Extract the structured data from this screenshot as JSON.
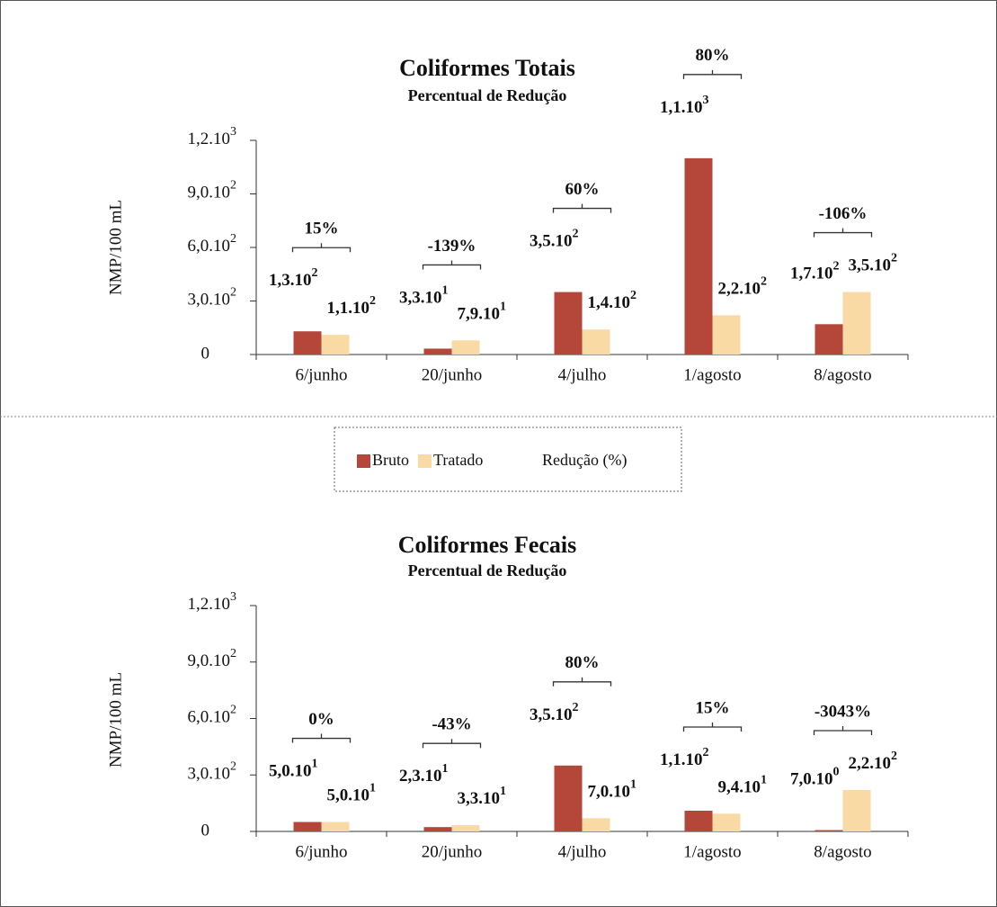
{
  "chart_data": [
    {
      "type": "bar",
      "title": "Coliformes Totais",
      "subtitle": "Percentual de Redução",
      "ylabel": "NMP/100 mL",
      "categories": [
        "6/junho",
        "20/junho",
        "4/julho",
        "1/agosto",
        "8/agosto"
      ],
      "series": [
        {
          "name": "Bruto",
          "color": "#b5473a",
          "values": [
            130,
            33,
            350,
            1100,
            170
          ],
          "value_labels": [
            {
              "text": "1,3.10",
              "exp": "2"
            },
            {
              "text": "3,3.10",
              "exp": "1"
            },
            {
              "text": "3,5.10",
              "exp": "2"
            },
            {
              "text": "1,1.10",
              "exp": "3"
            },
            {
              "text": "1,7.10",
              "exp": "2"
            }
          ]
        },
        {
          "name": "Tratado",
          "color": "#f9d9a4",
          "values": [
            110,
            79,
            140,
            220,
            350
          ],
          "value_labels": [
            {
              "text": "1,1.10",
              "exp": "2"
            },
            {
              "text": "7,9.10",
              "exp": "1"
            },
            {
              "text": "1,4.10",
              "exp": "2"
            },
            {
              "text": "2,2.10",
              "exp": "2"
            },
            {
              "text": "3,5.10",
              "exp": "2"
            }
          ]
        }
      ],
      "reductions": [
        "15%",
        "-139%",
        "60%",
        "80%",
        "-106%"
      ],
      "legend_extra": "Redução (%)",
      "ylim": [
        0,
        1200
      ],
      "yticks": [
        0,
        {
          "value": 300,
          "label": "3,0.10",
          "exp": "2"
        },
        {
          "value": 600,
          "label": "6,0.10",
          "exp": "2"
        },
        {
          "value": 900,
          "label": "9,0.10",
          "exp": "2"
        },
        {
          "value": 1200,
          "label": "1,2.10",
          "exp": "3"
        }
      ]
    },
    {
      "type": "bar",
      "title": "Coliformes Fecais",
      "subtitle": "Percentual de Redução",
      "ylabel": "NMP/100 mL",
      "categories": [
        "6/junho",
        "20/junho",
        "4/julho",
        "1/agosto",
        "8/agosto"
      ],
      "series": [
        {
          "color": "#b5473a",
          "values": [
            50,
            23,
            350,
            110,
            7
          ],
          "value_labels": [
            {
              "text": "5,0.10",
              "exp": "1"
            },
            {
              "text": "2,3.10",
              "exp": "1"
            },
            {
              "text": "3,5.10",
              "exp": "2"
            },
            {
              "text": "1,1.10",
              "exp": "2"
            },
            {
              "text": "7,0.10",
              "exp": "0"
            }
          ]
        },
        {
          "color": "#f9d9a4",
          "values": [
            50,
            33,
            70,
            94,
            220
          ],
          "value_labels": [
            {
              "text": "5,0.10",
              "exp": "1"
            },
            {
              "text": "3,3.10",
              "exp": "1"
            },
            {
              "text": "7,0.10",
              "exp": "1"
            },
            {
              "text": "9,4.10",
              "exp": "1"
            },
            {
              "text": "2,2.10",
              "exp": "2"
            }
          ]
        }
      ],
      "reductions": [
        "0%",
        "-43%",
        "80%",
        "15%",
        "-3043%"
      ],
      "ylim": [
        0,
        1200
      ],
      "yticks": [
        0,
        {
          "value": 300,
          "label": "3,0.10",
          "exp": "2"
        },
        {
          "value": 600,
          "label": "6,0.10",
          "exp": "2"
        },
        {
          "value": 900,
          "label": "9,0.10",
          "exp": "2"
        },
        {
          "value": 1200,
          "label": "1,2.10",
          "exp": "3"
        }
      ]
    }
  ]
}
